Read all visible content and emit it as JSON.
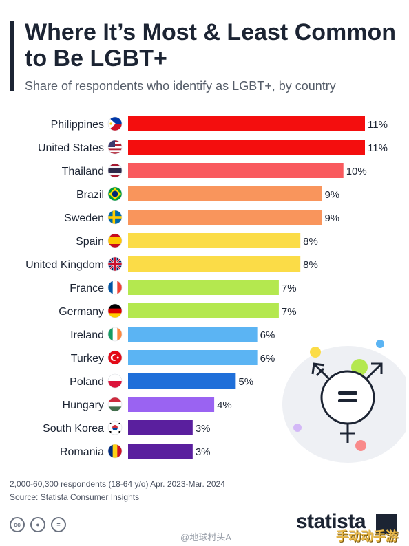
{
  "header": {
    "title": "Where It’s Most & Least Common to Be LGBT+",
    "subtitle": "Share of respondents who identify as LGBT+, by country"
  },
  "chart_data": {
    "type": "bar",
    "orientation": "horizontal",
    "title": "Where It’s Most & Least Common to Be LGBT+",
    "subtitle": "Share of respondents who identify as LGBT+, by country",
    "value_suffix": "%",
    "xlim": [
      0,
      11
    ],
    "grid": false,
    "categories": [
      "Philippines",
      "United States",
      "Thailand",
      "Brazil",
      "Sweden",
      "Spain",
      "United Kingdom",
      "France",
      "Germany",
      "Ireland",
      "Turkey",
      "Poland",
      "Hungary",
      "South Korea",
      "Romania"
    ],
    "values": [
      11,
      11,
      10,
      9,
      9,
      8,
      8,
      7,
      7,
      6,
      6,
      5,
      4,
      3,
      3
    ],
    "bar_colors": [
      "#f40e0e",
      "#f40e0e",
      "#f95a5e",
      "#f9955c",
      "#f9955c",
      "#fbdc47",
      "#fbdc47",
      "#b4e84f",
      "#b4e84f",
      "#5bb4f3",
      "#5bb4f3",
      "#1f6fd9",
      "#9a63f2",
      "#5a1f9e",
      "#5a1f9e"
    ],
    "flag_icons": [
      "philippines-flag-icon",
      "united-states-flag-icon",
      "thailand-flag-icon",
      "brazil-flag-icon",
      "sweden-flag-icon",
      "spain-flag-icon",
      "united-kingdom-flag-icon",
      "france-flag-icon",
      "germany-flag-icon",
      "ireland-flag-icon",
      "turkey-flag-icon",
      "poland-flag-icon",
      "hungary-flag-icon",
      "south-korea-flag-icon",
      "romania-flag-icon"
    ]
  },
  "footer": {
    "note": "2,000-60,300 respondents (18-64 y/o) Apr. 2023-Mar. 2024",
    "source": "Source: Statista Consumer Insights",
    "brand": "statista",
    "license_icons": [
      "cc-icon",
      "by-icon",
      "nd-icon"
    ]
  },
  "watermark": {
    "weibo": "@地球村头A",
    "site": "手动动手游"
  }
}
